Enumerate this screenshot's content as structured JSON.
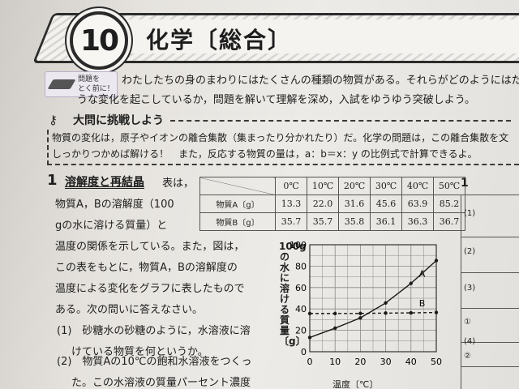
{
  "header": {
    "chapter_number": "10",
    "title": "化学〔総合〕"
  },
  "intro": {
    "icon_label_1": "問題を",
    "icon_label_2": "とく前に！",
    "lines": [
      "わたしたちの身のまわりにはたくさんの種類の物質がある。それらがどのようにはたらき，ど",
      "うな変化を起こしているか，問題を解いて理解を深め，入試をゆうゆう突破しよう。"
    ]
  },
  "challenge": {
    "key_icon": "key-icon",
    "heading": "大問に挑戦しよう",
    "lines": [
      "物質の変化は，原子やイオンの離合集散（集まったり分かれたり）だ。化学の問題は，この離合集散を文",
      "しっかりつかめば解ける！　また，反応する物質の量は，a：b＝x：y の比例式で計算できるよ。"
    ]
  },
  "question": {
    "number": "1",
    "title": "溶解度と再結晶",
    "body_lines": [
      "表は，",
      "物質A，Bの溶解度（100",
      "gの水に溶ける質量）と",
      "温度の関係を示している。また，図は，",
      "この表をもとに，物質A，Bの溶解度の",
      "温度による変化をグラフに表したもので",
      "ある。次の問いに答えなさい。"
    ],
    "sub1_a": "(1)　砂糖水の砂糖のように，水溶液に溶",
    "sub1_b": "けている物質を何というか。",
    "sub2_a": "(2)　物質Aの10℃の飽和水溶液をつくっ",
    "sub2_b": "た。この水溶液の質量パーセント濃度"
  },
  "table": {
    "headers": [
      "0℃",
      "10℃",
      "20℃",
      "30℃",
      "40℃",
      "50℃"
    ],
    "rows": [
      {
        "label": "物質A〔g〕",
        "values": [
          "13.3",
          "22.0",
          "31.6",
          "45.6",
          "63.9",
          "85.2"
        ]
      },
      {
        "label": "物質B〔g〕",
        "values": [
          "35.7",
          "35.7",
          "35.8",
          "36.1",
          "36.3",
          "36.7"
        ]
      }
    ]
  },
  "chart_data": {
    "type": "line",
    "ylabel": "100gの水に溶ける質量〔g〕",
    "xlabel": "温度〔℃〕",
    "x": [
      0,
      10,
      20,
      30,
      40,
      50
    ],
    "xticks": [
      "0",
      "10",
      "20",
      "30",
      "40",
      "50"
    ],
    "yticks": [
      "0",
      "20",
      "40",
      "60",
      "80",
      "100"
    ],
    "xlim": [
      0,
      50
    ],
    "ylim": [
      0,
      100
    ],
    "grid": true,
    "series": [
      {
        "name": "A",
        "values": [
          13.3,
          22.0,
          31.6,
          45.6,
          63.9,
          85.2
        ],
        "style": "solid"
      },
      {
        "name": "B",
        "values": [
          35.7,
          35.7,
          35.8,
          36.1,
          36.3,
          36.7
        ],
        "style": "dashed"
      }
    ]
  },
  "answers": {
    "number": "1",
    "labels": [
      "(1)",
      "(2)",
      "(3)",
      "①",
      "(4)",
      "②"
    ]
  }
}
